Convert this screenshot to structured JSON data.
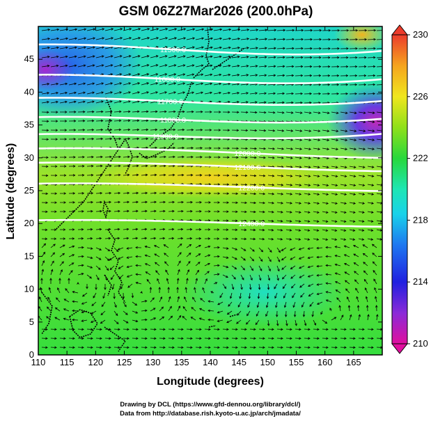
{
  "title": "GSM 06Z27Mar2026 (200.0hPa)",
  "xlabel": "Longitude (degrees)",
  "ylabel": "Latitude  (degrees)",
  "x_ticks": [
    "110",
    "115",
    "120",
    "125",
    "130",
    "135",
    "140",
    "145",
    "150",
    "155",
    "160",
    "165"
  ],
  "y_ticks": [
    "0",
    "5",
    "10",
    "15",
    "20",
    "25",
    "30",
    "35",
    "40",
    "45"
  ],
  "colorbar": {
    "ticks": [
      "210",
      "214",
      "218",
      "222",
      "226",
      "230"
    ]
  },
  "contours": [
    {
      "label": "11500.0",
      "lon": 133.5,
      "lat": 46.5
    },
    {
      "label": "11600.0",
      "lon": 132.5,
      "lat": 42.0
    },
    {
      "label": "11700.0",
      "lon": 133.0,
      "lat": 38.6
    },
    {
      "label": "11800.0",
      "lon": 133.5,
      "lat": 35.8
    },
    {
      "label": "11900.0",
      "lon": 132.2,
      "lat": 33.3
    },
    {
      "label": "12000.0",
      "lon": 146.5,
      "lat": 30.7
    },
    {
      "label": "12100.0",
      "lon": 146.5,
      "lat": 28.6
    },
    {
      "label": "12200.0",
      "lon": 147.2,
      "lat": 25.5
    },
    {
      "label": "12400.0",
      "lon": 147.2,
      "lat": 20.0
    }
  ],
  "credits": [
    "Drawing by DCL (https://www.gfd-dennou.org/library/dcl/)",
    "Data from http://database.rish.kyoto-u.ac.jp/arch/jmadata/"
  ]
}
